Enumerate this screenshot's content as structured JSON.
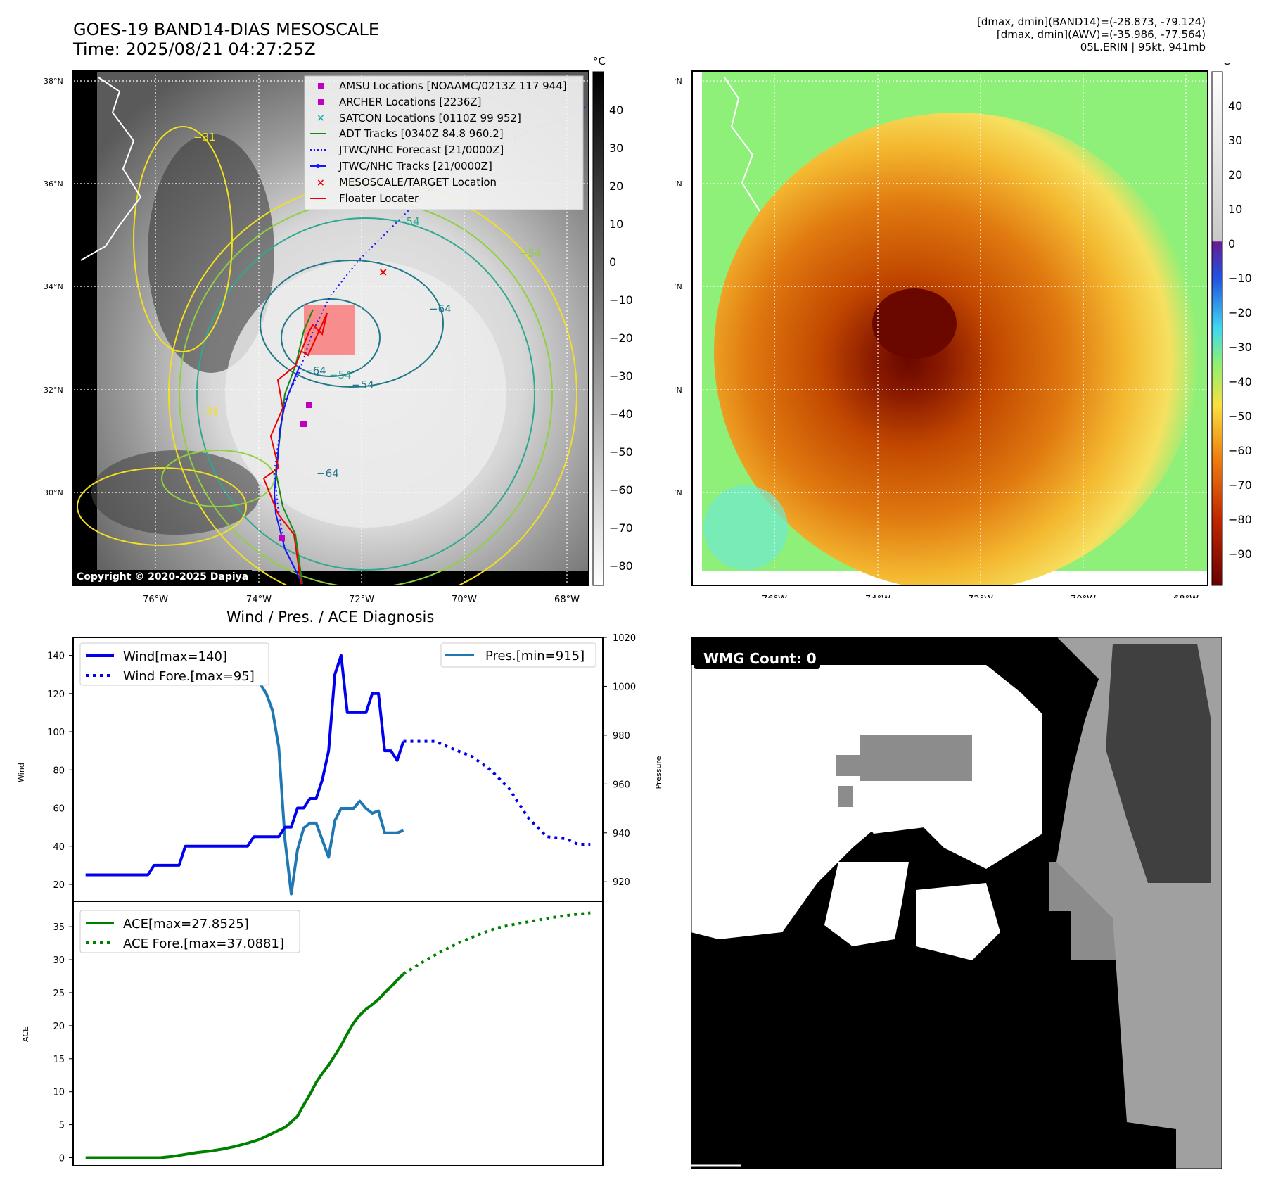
{
  "header": {
    "title_line1": "GOES-19 BAND14-DIAS MESOSCALE",
    "title_line2": "Time: 2025/08/21 04:27:25Z",
    "info_line1": "[dmax, dmin](BAND14)=(-28.873, -79.124)",
    "info_line2": "[dmax, dmin](AWV)=(-35.986, -77.564)",
    "info_line3": "05L.ERIN | 95kt, 941mb",
    "copyright": "Copyright © 2020-2025 Dapiya"
  },
  "map": {
    "lat_labels": [
      "38°N",
      "36°N",
      "34°N",
      "32°N",
      "30°N"
    ],
    "lon_labels": [
      "76°W",
      "74°W",
      "72°W",
      "70°W",
      "68°W"
    ],
    "unit": "°C",
    "gray_colorbar_ticks": [
      "40",
      "30",
      "20",
      "10",
      "0",
      "−10",
      "−20",
      "−30",
      "−40",
      "−50",
      "−60",
      "−70",
      "−80"
    ],
    "color_colorbar_ticks": [
      "40",
      "30",
      "20",
      "10",
      "0",
      "−10",
      "−20",
      "−30",
      "−40",
      "−50",
      "−60",
      "−70",
      "−80",
      "−90"
    ],
    "contour_labels": [
      "−31",
      "−54",
      "−64",
      "−54",
      "−64",
      "−64",
      "−54",
      "−54",
      "−31"
    ],
    "legend": [
      {
        "label": "AMSU Locations [NOAAMC/0213Z 117 944]",
        "color": "#c000c0",
        "marker": "square"
      },
      {
        "label": "ARCHER Locations [2236Z]",
        "color": "#c000c0",
        "marker": "square"
      },
      {
        "label": "SATCON Locations [0110Z 99 952]",
        "color": "#20b0b0",
        "marker": "x"
      },
      {
        "label": "ADT Tracks [0340Z 84.8 960.2]",
        "color": "#138a13",
        "marker": "line"
      },
      {
        "label": "JTWC/NHC Forecast [21/0000Z]",
        "color": "#1515ff",
        "marker": "dotted"
      },
      {
        "label": "JTWC/NHC Tracks [21/0000Z]",
        "color": "#1515ff",
        "marker": "line-dot"
      },
      {
        "label": "MESOSCALE/TARGET Location",
        "color": "#ee0000",
        "marker": "x"
      },
      {
        "label": "Floater Locater",
        "color": "#ee0000",
        "marker": "line"
      }
    ]
  },
  "diagnosis": {
    "title": "Wind / Pres. / ACE Diagnosis",
    "wind_ylabel": "Wind",
    "pressure_ylabel": "Pressure",
    "ace_ylabel": "ACE",
    "wind_legend": "Wind[max=140]",
    "wind_fore_legend": "Wind Fore.[max=95]",
    "pres_legend": "Pres.[min=915]",
    "ace_legend": "ACE[max=27.8525]",
    "ace_fore_legend": "ACE Fore.[max=37.0881]"
  },
  "wmg": {
    "label": "WMG Count: 0"
  },
  "colors": {
    "wind": "#0000ee",
    "pressure": "#1f77b4",
    "ace": "#008000"
  },
  "chart_data": [
    {
      "type": "line",
      "title": "Wind / Pres. / ACE Diagnosis",
      "ylabel": "Wind",
      "ylim": [
        20,
        145
      ],
      "yticks": [
        20,
        40,
        60,
        80,
        100,
        120,
        140
      ],
      "series": [
        {
          "name": "Wind[max=140]",
          "style": "solid",
          "color": "#0000ee",
          "x": [
            0,
            1,
            2,
            3,
            4,
            5,
            6,
            7,
            8,
            9,
            10,
            11,
            12,
            13,
            14,
            15,
            16,
            17,
            18,
            19,
            20,
            21,
            22,
            23,
            24,
            25,
            26,
            27,
            28,
            29,
            30,
            31,
            32,
            33,
            34,
            35,
            36,
            37,
            38,
            39,
            40,
            41,
            42,
            43,
            44,
            45,
            46,
            47,
            48,
            49,
            50,
            51
          ],
          "values": [
            25,
            25,
            25,
            25,
            25,
            25,
            25,
            25,
            25,
            25,
            25,
            30,
            30,
            30,
            30,
            30,
            40,
            40,
            40,
            40,
            40,
            40,
            40,
            40,
            40,
            40,
            40,
            45,
            45,
            45,
            45,
            45,
            50,
            50,
            60,
            60,
            65,
            65,
            75,
            90,
            130,
            140,
            110,
            110,
            110,
            110,
            120,
            120,
            90,
            90,
            85,
            95
          ]
        },
        {
          "name": "Wind Fore.[max=95]",
          "style": "dotted",
          "color": "#0000ee",
          "x": [
            51,
            53,
            56,
            59,
            62,
            65,
            68,
            71,
            74,
            77,
            79,
            81
          ],
          "values": [
            95,
            95,
            95,
            91,
            87,
            80,
            70,
            55,
            45,
            44,
            41,
            41
          ]
        }
      ]
    },
    {
      "type": "line",
      "ylabel": "Pressure",
      "ylim": [
        912,
        1020
      ],
      "yticks": [
        920,
        940,
        960,
        980,
        1000,
        1020
      ],
      "series": [
        {
          "name": "Pres.[min=915]",
          "style": "solid",
          "color": "#1f77b4",
          "x": [
            0,
            1,
            2,
            3,
            4,
            5,
            6,
            7,
            8,
            9,
            10,
            11,
            12,
            13,
            14,
            15,
            16,
            17,
            18,
            19,
            20,
            21,
            22,
            23,
            24,
            25,
            26,
            27,
            28,
            29,
            30,
            31,
            32,
            33,
            34,
            35,
            36,
            37,
            38,
            39,
            40,
            41,
            42,
            43,
            44,
            45,
            46,
            47,
            48,
            49,
            50,
            51
          ],
          "values": [
            1013,
            1013,
            1008,
            1007,
            1007,
            1006,
            1006,
            1006,
            1006,
            1006,
            1006,
            1006,
            1006,
            1005,
            1005,
            1004,
            1004,
            1004,
            1004,
            1004,
            1004,
            1004,
            1003,
            1003,
            1002,
            1002,
            1001,
            1001,
            1001,
            997,
            990,
            975,
            937,
            915,
            933,
            942,
            944,
            944,
            937,
            930,
            945,
            950,
            950,
            950,
            953,
            950,
            948,
            949,
            940,
            940,
            940,
            941
          ]
        }
      ]
    },
    {
      "type": "line",
      "ylabel": "ACE",
      "ylim": [
        -0.8,
        38
      ],
      "yticks": [
        0,
        5,
        10,
        15,
        20,
        25,
        30,
        35
      ],
      "series": [
        {
          "name": "ACE[max=27.8525]",
          "style": "solid",
          "color": "#008000",
          "x": [
            0,
            2,
            4,
            6,
            8,
            10,
            12,
            14,
            16,
            18,
            20,
            22,
            24,
            26,
            28,
            30,
            32,
            33,
            34,
            35,
            36,
            37,
            38,
            39,
            40,
            41,
            42,
            43,
            44,
            45,
            46,
            47,
            48,
            49,
            50,
            51
          ],
          "values": [
            0,
            0,
            0,
            0,
            0,
            0,
            0,
            0.2,
            0.5,
            0.8,
            1.0,
            1.3,
            1.7,
            2.2,
            2.8,
            3.7,
            4.6,
            5.4,
            6.3,
            8.0,
            9.6,
            11.4,
            12.8,
            14.0,
            15.5,
            17.0,
            18.8,
            20.4,
            21.6,
            22.5,
            23.2,
            24.0,
            25.0,
            25.9,
            26.9,
            27.85
          ]
        },
        {
          "name": "ACE Fore.[max=37.0881]",
          "style": "dotted",
          "color": "#008000",
          "x": [
            51,
            54,
            57,
            60,
            63,
            66,
            69,
            72,
            75,
            78,
            81
          ],
          "values": [
            27.85,
            29.6,
            31.2,
            32.6,
            33.8,
            34.8,
            35.4,
            35.9,
            36.4,
            36.8,
            37.09
          ]
        }
      ]
    }
  ]
}
